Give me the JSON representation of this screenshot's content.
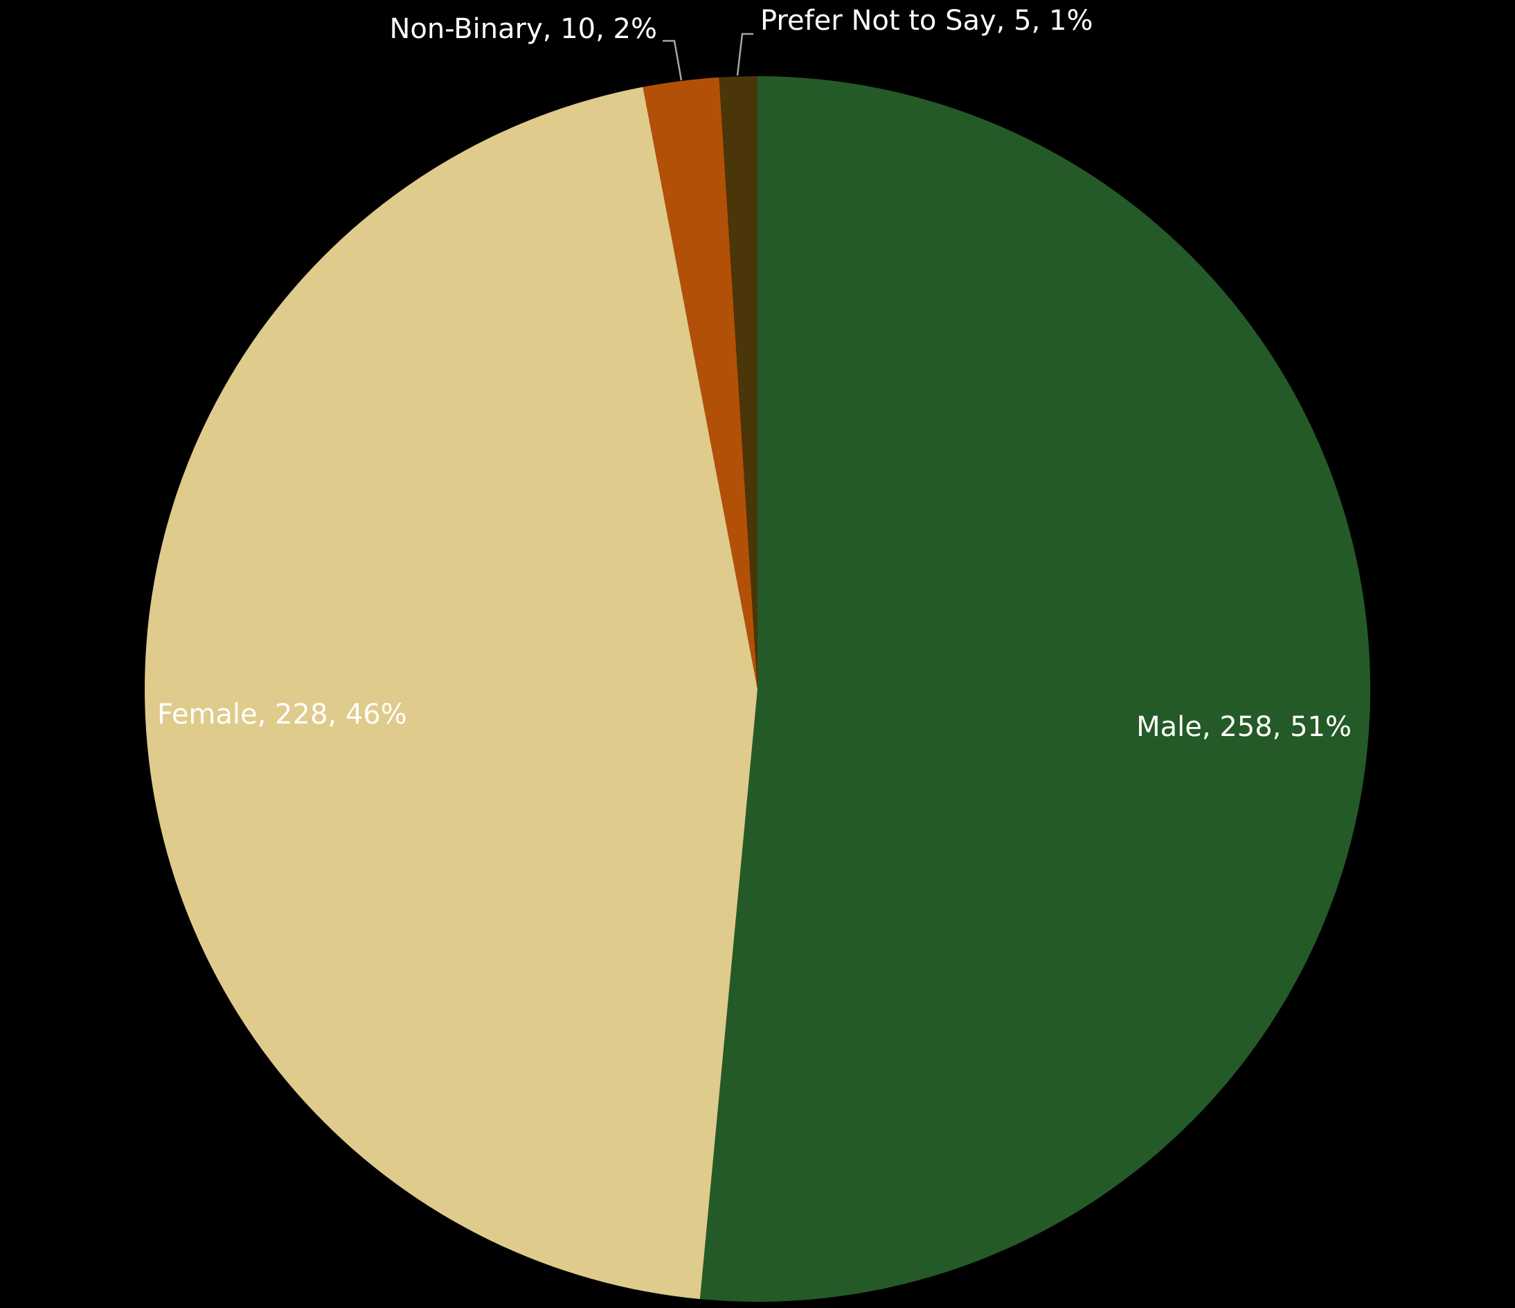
{
  "chart_data": {
    "type": "pie",
    "values": [
      258,
      228,
      10,
      5
    ],
    "value_labels": [
      "Male, 258, 51%",
      "Female, 228, 46%",
      "Non-Binary, 10, 2%",
      "Prefer Not to Say, 5, 1%"
    ],
    "colors": [
      "#245a27",
      "#dfcb8b",
      "#b35008",
      "#4a3608"
    ]
  }
}
